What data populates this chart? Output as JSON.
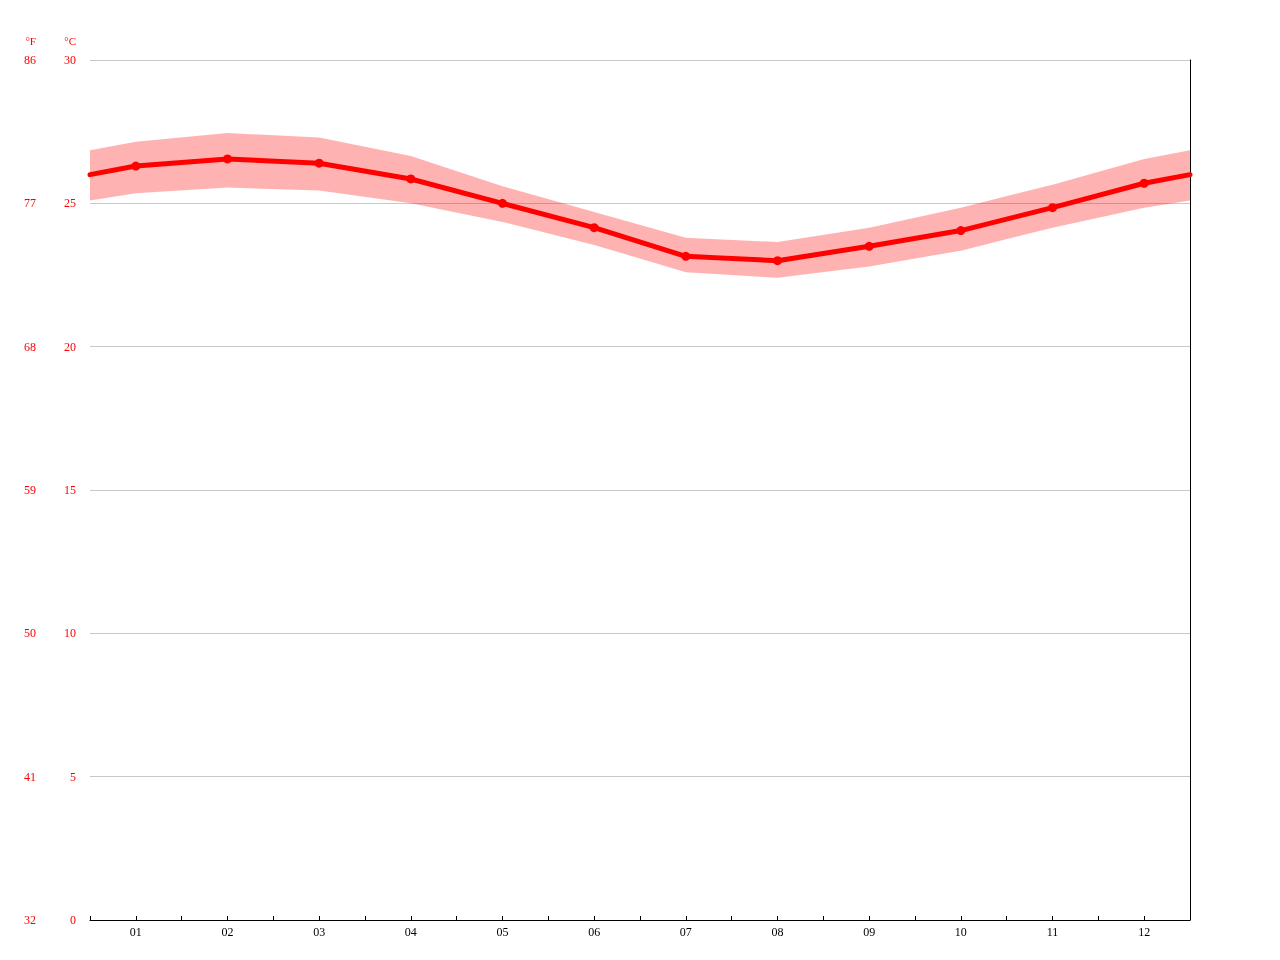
{
  "chart_data": {
    "type": "line",
    "ylabel": "°C",
    "y2label": "°F",
    "x": [
      0.5,
      1,
      2,
      3,
      4,
      5,
      6,
      7,
      8,
      9,
      10,
      11,
      12,
      12.5
    ],
    "xlim": [
      0.5,
      12.5
    ],
    "xticks": [
      {
        "value": 0.5,
        "label": null
      },
      {
        "value": 1,
        "label": "01"
      },
      {
        "value": 1.5,
        "label": null
      },
      {
        "value": 2,
        "label": "02"
      },
      {
        "value": 2.5,
        "label": null
      },
      {
        "value": 3,
        "label": "03"
      },
      {
        "value": 3.5,
        "label": null
      },
      {
        "value": 4,
        "label": "04"
      },
      {
        "value": 4.5,
        "label": null
      },
      {
        "value": 5,
        "label": "05"
      },
      {
        "value": 5.5,
        "label": null
      },
      {
        "value": 6,
        "label": "06"
      },
      {
        "value": 6.5,
        "label": null
      },
      {
        "value": 7,
        "label": "07"
      },
      {
        "value": 7.5,
        "label": null
      },
      {
        "value": 8,
        "label": "08"
      },
      {
        "value": 8.5,
        "label": null
      },
      {
        "value": 9,
        "label": "09"
      },
      {
        "value": 9.5,
        "label": null
      },
      {
        "value": 10,
        "label": "10"
      },
      {
        "value": 10.5,
        "label": null
      },
      {
        "value": 11,
        "label": "11"
      },
      {
        "value": 11.5,
        "label": null
      },
      {
        "value": 12,
        "label": "12"
      },
      {
        "value": 12.5,
        "label": null
      }
    ],
    "ylim": [
      0,
      30
    ],
    "yticks": [
      0,
      5,
      10,
      15,
      20,
      25,
      30
    ],
    "y2lim": [
      32,
      86
    ],
    "y2ticks": [
      32,
      41,
      50,
      59,
      68,
      77,
      86
    ],
    "grid": "y",
    "marker": "circle",
    "line_style": "solid",
    "series": [
      {
        "color": "#ff0000",
        "values": [
          26.0,
          26.3,
          26.55,
          26.4,
          25.85,
          25.0,
          24.15,
          23.15,
          23.0,
          23.5,
          24.05,
          24.85,
          25.7,
          26.0
        ],
        "lower": [
          25.1,
          25.35,
          25.55,
          25.45,
          25.0,
          24.35,
          23.55,
          22.6,
          22.4,
          22.8,
          23.35,
          24.15,
          24.85,
          25.1
        ],
        "upper": [
          26.85,
          27.15,
          27.45,
          27.3,
          26.65,
          25.6,
          24.7,
          23.8,
          23.65,
          24.15,
          24.85,
          25.65,
          26.55,
          26.85
        ]
      }
    ]
  }
}
